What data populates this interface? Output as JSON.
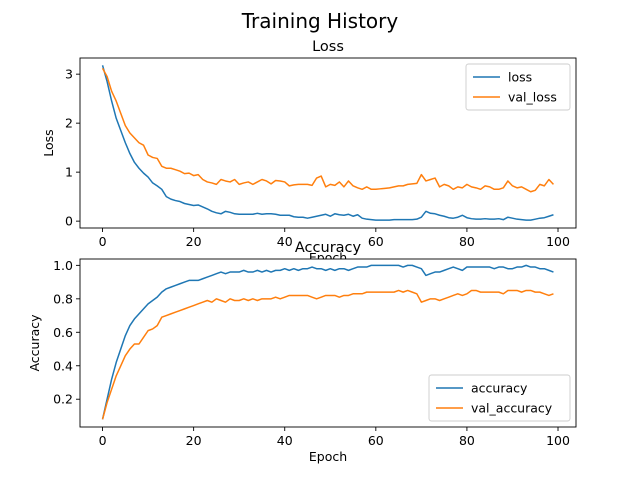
{
  "figure": {
    "suptitle": "Training History"
  },
  "colors": {
    "series1": "#1f77b4",
    "series2": "#ff7f0e"
  },
  "chart_data": [
    {
      "type": "line",
      "title": "Loss",
      "xlabel": "Epoch",
      "ylabel": "Loss",
      "xlim": [
        -4.95,
        103.95
      ],
      "ylim": [
        -0.14,
        3.33
      ],
      "xticks": [
        0,
        20,
        40,
        60,
        80,
        100
      ],
      "yticks": [
        0,
        1,
        2,
        3
      ],
      "legend": "upper right",
      "x": [
        0,
        1,
        2,
        3,
        4,
        5,
        6,
        7,
        8,
        9,
        10,
        11,
        12,
        13,
        14,
        15,
        16,
        17,
        18,
        19,
        20,
        21,
        22,
        23,
        24,
        25,
        26,
        27,
        28,
        29,
        30,
        31,
        32,
        33,
        34,
        35,
        36,
        37,
        38,
        39,
        40,
        41,
        42,
        43,
        44,
        45,
        46,
        47,
        48,
        49,
        50,
        51,
        52,
        53,
        54,
        55,
        56,
        57,
        58,
        59,
        60,
        61,
        62,
        63,
        64,
        65,
        66,
        67,
        68,
        69,
        70,
        71,
        72,
        73,
        74,
        75,
        76,
        77,
        78,
        79,
        80,
        81,
        82,
        83,
        84,
        85,
        86,
        87,
        88,
        89,
        90,
        91,
        92,
        93,
        94,
        95,
        96,
        97,
        98,
        99
      ],
      "series": [
        {
          "name": "loss",
          "values": [
            3.18,
            2.85,
            2.45,
            2.1,
            1.85,
            1.6,
            1.38,
            1.2,
            1.08,
            0.98,
            0.9,
            0.78,
            0.72,
            0.65,
            0.5,
            0.45,
            0.42,
            0.4,
            0.36,
            0.34,
            0.32,
            0.33,
            0.29,
            0.25,
            0.2,
            0.17,
            0.15,
            0.2,
            0.18,
            0.15,
            0.14,
            0.14,
            0.14,
            0.14,
            0.16,
            0.14,
            0.15,
            0.15,
            0.14,
            0.12,
            0.12,
            0.12,
            0.09,
            0.08,
            0.08,
            0.06,
            0.08,
            0.1,
            0.12,
            0.14,
            0.1,
            0.15,
            0.13,
            0.12,
            0.14,
            0.1,
            0.13,
            0.06,
            0.04,
            0.03,
            0.02,
            0.02,
            0.02,
            0.02,
            0.03,
            0.03,
            0.03,
            0.03,
            0.03,
            0.04,
            0.08,
            0.2,
            0.16,
            0.15,
            0.12,
            0.1,
            0.07,
            0.06,
            0.08,
            0.12,
            0.07,
            0.05,
            0.04,
            0.04,
            0.05,
            0.04,
            0.04,
            0.05,
            0.03,
            0.08,
            0.06,
            0.04,
            0.03,
            0.02,
            0.02,
            0.04,
            0.06,
            0.07,
            0.1,
            0.13
          ]
        },
        {
          "name": "val_loss",
          "values": [
            3.12,
            2.95,
            2.65,
            2.45,
            2.2,
            1.95,
            1.8,
            1.7,
            1.6,
            1.55,
            1.35,
            1.3,
            1.28,
            1.12,
            1.08,
            1.08,
            1.05,
            1.02,
            0.97,
            0.98,
            0.93,
            0.95,
            0.85,
            0.8,
            0.78,
            0.75,
            0.85,
            0.82,
            0.8,
            0.85,
            0.75,
            0.78,
            0.8,
            0.75,
            0.8,
            0.85,
            0.82,
            0.76,
            0.83,
            0.82,
            0.8,
            0.72,
            0.74,
            0.75,
            0.75,
            0.75,
            0.73,
            0.88,
            0.92,
            0.7,
            0.75,
            0.73,
            0.8,
            0.7,
            0.82,
            0.72,
            0.68,
            0.65,
            0.7,
            0.65,
            0.65,
            0.66,
            0.67,
            0.68,
            0.7,
            0.72,
            0.72,
            0.75,
            0.76,
            0.77,
            0.95,
            0.82,
            0.85,
            0.88,
            0.7,
            0.75,
            0.72,
            0.65,
            0.7,
            0.68,
            0.75,
            0.7,
            0.68,
            0.65,
            0.72,
            0.7,
            0.65,
            0.65,
            0.68,
            0.82,
            0.72,
            0.68,
            0.7,
            0.65,
            0.6,
            0.63,
            0.75,
            0.72,
            0.85,
            0.75
          ]
        }
      ]
    },
    {
      "type": "line",
      "title": "Accuracy",
      "xlabel": "Epoch",
      "ylabel": "Accuracy",
      "xlim": [
        -4.95,
        103.95
      ],
      "ylim": [
        0.034,
        1.038
      ],
      "xticks": [
        0,
        20,
        40,
        60,
        80,
        100
      ],
      "yticks": [
        0.2,
        0.4,
        0.6,
        0.8,
        1.0
      ],
      "ytick_labels": [
        "0.2",
        "0.4",
        "0.6",
        "0.8",
        "1.0"
      ],
      "legend": "lower right",
      "x": [
        0,
        1,
        2,
        3,
        4,
        5,
        6,
        7,
        8,
        9,
        10,
        11,
        12,
        13,
        14,
        15,
        16,
        17,
        18,
        19,
        20,
        21,
        22,
        23,
        24,
        25,
        26,
        27,
        28,
        29,
        30,
        31,
        32,
        33,
        34,
        35,
        36,
        37,
        38,
        39,
        40,
        41,
        42,
        43,
        44,
        45,
        46,
        47,
        48,
        49,
        50,
        51,
        52,
        53,
        54,
        55,
        56,
        57,
        58,
        59,
        60,
        61,
        62,
        63,
        64,
        65,
        66,
        67,
        68,
        69,
        70,
        71,
        72,
        73,
        74,
        75,
        76,
        77,
        78,
        79,
        80,
        81,
        82,
        83,
        84,
        85,
        86,
        87,
        88,
        89,
        90,
        91,
        92,
        93,
        94,
        95,
        96,
        97,
        98,
        99
      ],
      "series": [
        {
          "name": "accuracy",
          "values": [
            0.08,
            0.2,
            0.32,
            0.42,
            0.5,
            0.58,
            0.64,
            0.68,
            0.71,
            0.74,
            0.77,
            0.79,
            0.81,
            0.84,
            0.86,
            0.87,
            0.88,
            0.89,
            0.9,
            0.91,
            0.91,
            0.91,
            0.92,
            0.93,
            0.94,
            0.95,
            0.96,
            0.95,
            0.96,
            0.96,
            0.96,
            0.97,
            0.96,
            0.96,
            0.97,
            0.96,
            0.97,
            0.96,
            0.97,
            0.97,
            0.98,
            0.97,
            0.98,
            0.97,
            0.98,
            0.98,
            0.99,
            0.98,
            0.98,
            0.97,
            0.98,
            0.97,
            0.98,
            0.98,
            0.97,
            0.98,
            0.99,
            0.99,
            0.99,
            1.0,
            1.0,
            1.0,
            1.0,
            1.0,
            1.0,
            1.0,
            0.99,
            1.0,
            1.0,
            0.99,
            0.98,
            0.94,
            0.95,
            0.96,
            0.96,
            0.97,
            0.98,
            0.99,
            0.98,
            0.97,
            0.99,
            0.99,
            0.99,
            0.99,
            0.99,
            0.99,
            0.98,
            0.99,
            0.99,
            0.98,
            0.98,
            0.99,
            0.99,
            1.0,
            0.99,
            0.99,
            0.98,
            0.98,
            0.97,
            0.96
          ]
        },
        {
          "name": "val_accuracy",
          "values": [
            0.08,
            0.18,
            0.26,
            0.34,
            0.4,
            0.46,
            0.5,
            0.53,
            0.53,
            0.57,
            0.61,
            0.62,
            0.64,
            0.69,
            0.7,
            0.71,
            0.72,
            0.73,
            0.74,
            0.75,
            0.76,
            0.77,
            0.78,
            0.79,
            0.78,
            0.8,
            0.79,
            0.78,
            0.8,
            0.79,
            0.79,
            0.8,
            0.79,
            0.8,
            0.79,
            0.8,
            0.8,
            0.8,
            0.81,
            0.8,
            0.81,
            0.82,
            0.82,
            0.82,
            0.82,
            0.82,
            0.81,
            0.8,
            0.81,
            0.82,
            0.82,
            0.82,
            0.81,
            0.82,
            0.82,
            0.83,
            0.83,
            0.83,
            0.84,
            0.84,
            0.84,
            0.84,
            0.84,
            0.84,
            0.84,
            0.85,
            0.84,
            0.85,
            0.84,
            0.83,
            0.78,
            0.79,
            0.8,
            0.8,
            0.79,
            0.8,
            0.81,
            0.82,
            0.83,
            0.82,
            0.83,
            0.85,
            0.85,
            0.84,
            0.84,
            0.84,
            0.84,
            0.84,
            0.83,
            0.85,
            0.85,
            0.85,
            0.84,
            0.85,
            0.85,
            0.84,
            0.84,
            0.83,
            0.82,
            0.83
          ]
        }
      ]
    }
  ]
}
